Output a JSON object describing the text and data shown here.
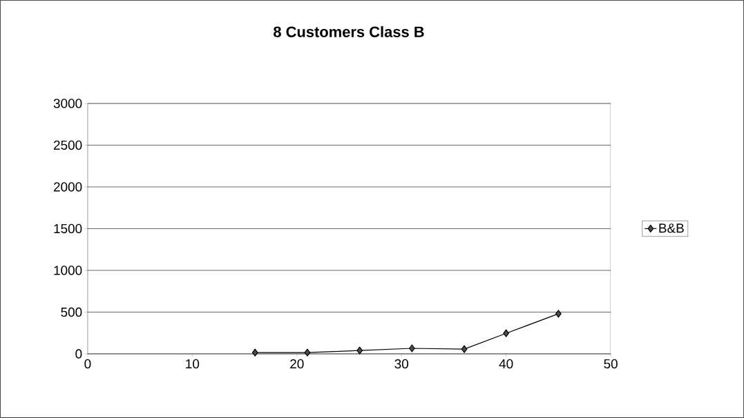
{
  "chart_data": {
    "type": "line",
    "title": "8 Customers Class B",
    "x": [
      16,
      21,
      26,
      31,
      36,
      40,
      45
    ],
    "series": [
      {
        "name": "B&B",
        "color": "#000000",
        "values": [
          15,
          15,
          40,
          66,
          57,
          246,
          480
        ]
      }
    ],
    "xlim": [
      0,
      50
    ],
    "xticks": [
      0,
      10,
      20,
      30,
      40,
      50
    ],
    "ylim": [
      0,
      3000
    ],
    "yticks": [
      0,
      500,
      1000,
      1500,
      2000,
      2500,
      3000
    ],
    "grid": "y",
    "legend": "right",
    "marker": "diamond",
    "line_style": "solid"
  }
}
